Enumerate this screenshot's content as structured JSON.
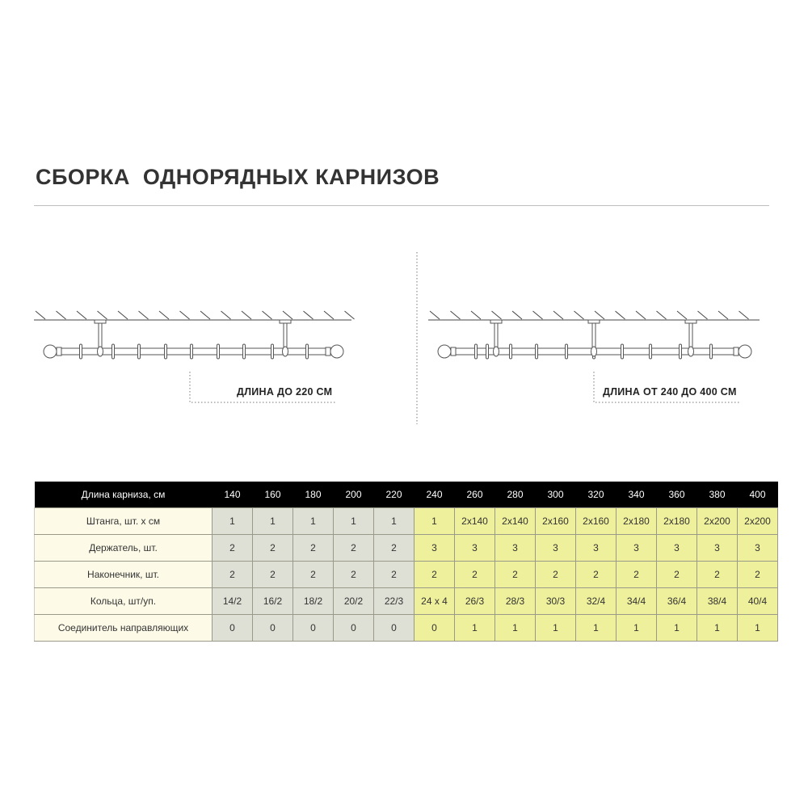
{
  "title": "СБОРКА  ОДНОРЯДНЫХ КАРНИЗОВ",
  "diagrams": {
    "left_label": "ДЛИНА ДО 220 СМ",
    "right_label": "ДЛИНА ОТ 240 ДО 400 СМ"
  },
  "table": {
    "header_label": "Длина карниза, см",
    "lengths": [
      "140",
      "160",
      "180",
      "200",
      "220",
      "240",
      "260",
      "280",
      "300",
      "320",
      "340",
      "360",
      "380",
      "400"
    ],
    "rows": [
      {
        "label": "Штанга, шт. х см",
        "values": [
          "1",
          "1",
          "1",
          "1",
          "1",
          "1",
          "2x140",
          "2x140",
          "2x160",
          "2x160",
          "2x180",
          "2x180",
          "2x200",
          "2x200"
        ]
      },
      {
        "label": "Держатель, шт.",
        "values": [
          "2",
          "2",
          "2",
          "2",
          "2",
          "3",
          "3",
          "3",
          "3",
          "3",
          "3",
          "3",
          "3",
          "3"
        ]
      },
      {
        "label": "Наконечник, шт.",
        "values": [
          "2",
          "2",
          "2",
          "2",
          "2",
          "2",
          "2",
          "2",
          "2",
          "2",
          "2",
          "2",
          "2",
          "2"
        ]
      },
      {
        "label": "Кольца, шт/уп.",
        "values": [
          "14/2",
          "16/2",
          "18/2",
          "20/2",
          "22/3",
          "24 x 4",
          "26/3",
          "28/3",
          "30/3",
          "32/4",
          "34/4",
          "36/4",
          "38/4",
          "40/4"
        ]
      },
      {
        "label": "Соединитель направляющих",
        "values": [
          "0",
          "0",
          "0",
          "0",
          "0",
          "0",
          "1",
          "1",
          "1",
          "1",
          "1",
          "1",
          "1",
          "1"
        ]
      }
    ],
    "colors": {
      "header": "#000000",
      "label_column": "#fdfbe8",
      "up_to_220": "#dfe0d5",
      "from_240": "#eef09c"
    }
  }
}
